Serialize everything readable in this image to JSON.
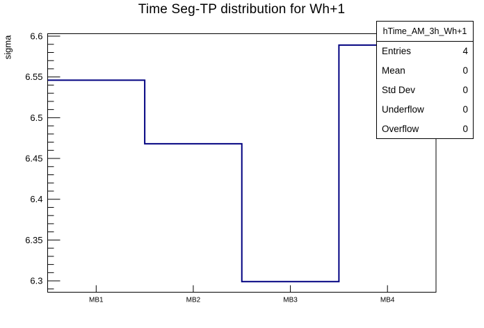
{
  "chart_data": {
    "type": "step-histogram",
    "title": "Time Seg-TP distribution for Wh+1",
    "xlabel": "",
    "ylabel": "sigma",
    "categories": [
      "MB1",
      "MB2",
      "MB3",
      "MB4"
    ],
    "values": [
      6.546,
      6.468,
      6.299,
      6.589
    ],
    "ylim": [
      6.286,
      6.603
    ],
    "ytick_labels": [
      "6.3",
      "6.35",
      "6.4",
      "6.45",
      "6.5",
      "6.55",
      "6.6"
    ],
    "ytick_step_major": 0.05,
    "ytick_step_minor": 0.01,
    "grid": false,
    "line_color": "#000080",
    "frame_color": "#000000",
    "legend_position": "stats-box top-right"
  },
  "stats_box": {
    "title": "hTime_AM_3h_Wh+1",
    "rows": [
      {
        "label": "Entries",
        "value": "4"
      },
      {
        "label": "Mean",
        "value": "0"
      },
      {
        "label": "Std Dev",
        "value": "0"
      },
      {
        "label": "Underflow",
        "value": "0"
      },
      {
        "label": "Overflow",
        "value": "0"
      }
    ]
  }
}
